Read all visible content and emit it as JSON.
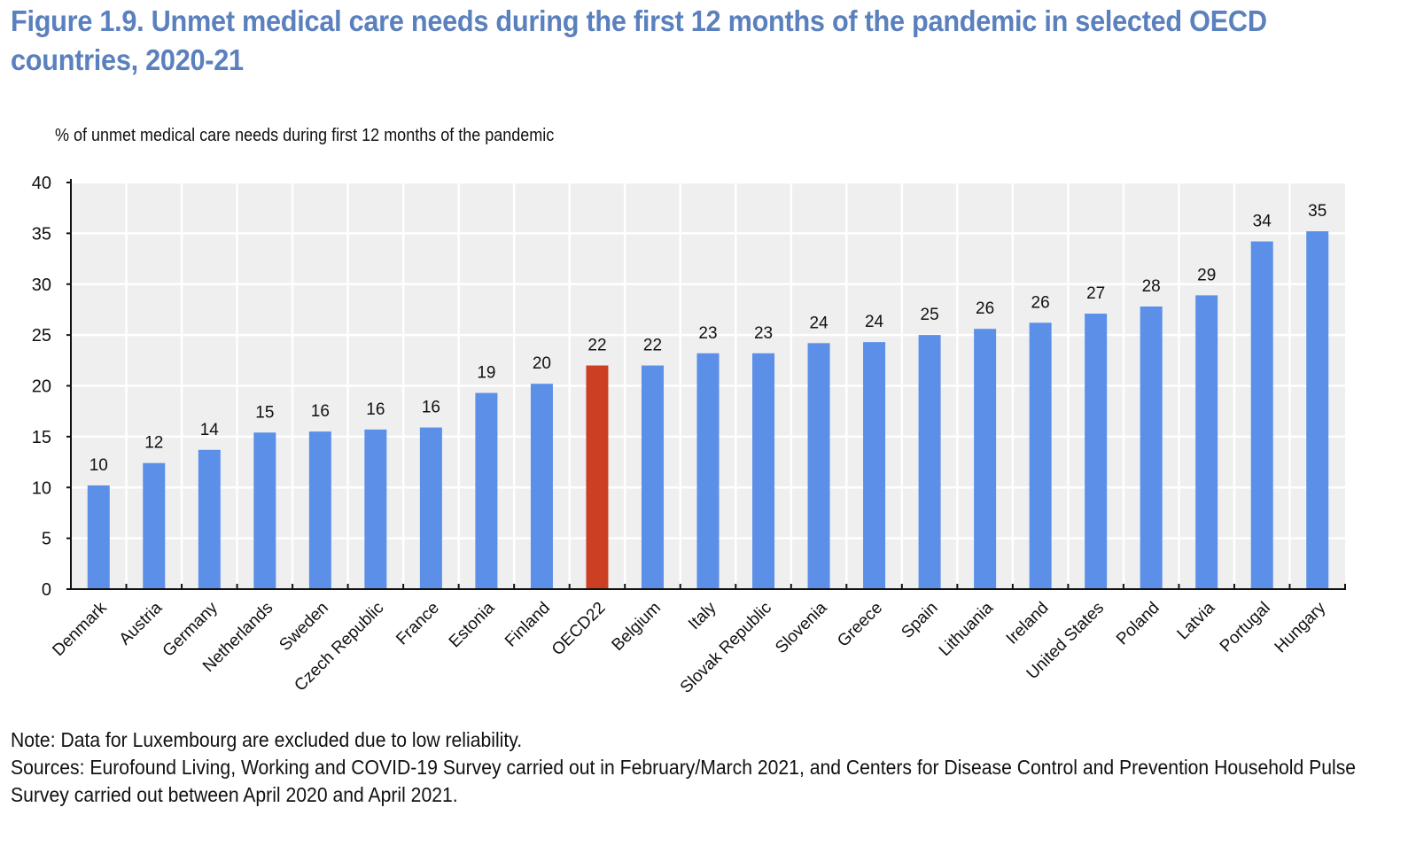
{
  "header": {
    "title": "Figure 1.9. Unmet medical care needs during the first 12 months of the pandemic in selected OECD countries, 2020-21"
  },
  "notes": {
    "note": "Note: Data for Luxembourg are excluded due to low reliability.",
    "sources": "Sources: Eurofound Living, Working and COVID-19 Survey carried out in February/March 2021, and Centers for Disease Control and Prevention Household Pulse Survey carried out between April 2020 and April 2021."
  },
  "colors": {
    "bar": "#5b8fe8",
    "highlight": "#cc3f22",
    "plot_background": "#efefef",
    "grid": "#ffffff",
    "title": "#5a80bd"
  },
  "chart_data": {
    "type": "bar",
    "title": "Figure 1.9. Unmet medical care needs during the first 12 months of the pandemic in selected OECD countries, 2020-21",
    "xlabel": "",
    "ylabel": "% of unmet medical care needs during first 12 months of the pandemic",
    "ylim": [
      0,
      40
    ],
    "yticks": [
      0,
      5,
      10,
      15,
      20,
      25,
      30,
      35,
      40
    ],
    "grid": true,
    "legend": "none",
    "highlight_category": "OECD22",
    "categories": [
      "Denmark",
      "Austria",
      "Germany",
      "Netherlands",
      "Sweden",
      "Czech Republic",
      "France",
      "Estonia",
      "Finland",
      "OECD22",
      "Belgium",
      "Italy",
      "Slovak Republic",
      "Slovenia",
      "Greece",
      "Spain",
      "Lithuania",
      "Ireland",
      "United States",
      "Poland",
      "Latvia",
      "Portugal",
      "Hungary"
    ],
    "values": [
      10.2,
      12.4,
      13.7,
      15.4,
      15.5,
      15.7,
      15.9,
      19.3,
      20.2,
      22.0,
      22.0,
      23.2,
      23.2,
      24.2,
      24.3,
      25.0,
      25.6,
      26.2,
      27.1,
      27.8,
      28.9,
      34.2,
      35.2
    ],
    "data_labels": [
      "10",
      "12",
      "14",
      "15",
      "16",
      "16",
      "16",
      "19",
      "20",
      "22",
      "22",
      "23",
      "23",
      "24",
      "24",
      "25",
      "26",
      "26",
      "27",
      "28",
      "29",
      "34",
      "35"
    ]
  }
}
